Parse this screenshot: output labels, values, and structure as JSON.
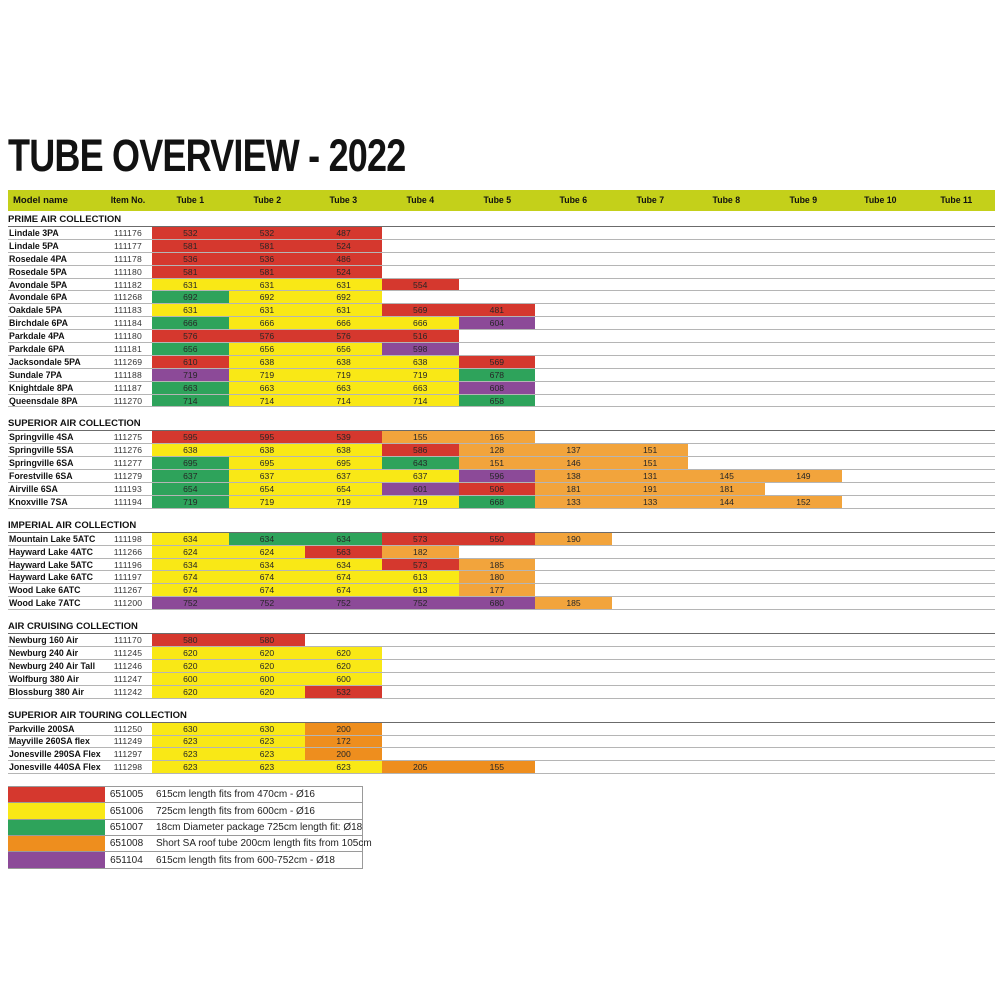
{
  "title": "TUBE OVERVIEW - 2022",
  "table": {
    "columns": [
      "Model name",
      "Item No.",
      "Tube 1",
      "Tube 2",
      "Tube 3",
      "Tube 4",
      "Tube 5",
      "Tube 6",
      "Tube 7",
      "Tube 8",
      "Tube 9",
      "Tube 10",
      "Tube 11"
    ],
    "colors": {
      "header": "#C4D01A",
      "r": "#D5382E",
      "y": "#F9E816",
      "g": "#2EA35B",
      "o": "#F2A43C",
      "d": "#EE8E1E",
      "p": "#8C4A98"
    },
    "sections": [
      {
        "name": "PRIME AIR COLLECTION",
        "rows": [
          {
            "model": "Lindale 3PA",
            "item": "111176",
            "cells": [
              {
                "v": "532",
                "c": "r"
              },
              {
                "v": "532",
                "c": "r"
              },
              {
                "v": "487",
                "c": "r"
              }
            ]
          },
          {
            "model": "Lindale 5PA",
            "item": "111177",
            "cells": [
              {
                "v": "581",
                "c": "r"
              },
              {
                "v": "581",
                "c": "r"
              },
              {
                "v": "524",
                "c": "r"
              }
            ]
          },
          {
            "model": "Rosedale 4PA",
            "item": "111178",
            "cells": [
              {
                "v": "536",
                "c": "r"
              },
              {
                "v": "536",
                "c": "r"
              },
              {
                "v": "486",
                "c": "r"
              }
            ]
          },
          {
            "model": "Rosedale 5PA",
            "item": "111180",
            "cells": [
              {
                "v": "581",
                "c": "r"
              },
              {
                "v": "581",
                "c": "r"
              },
              {
                "v": "524",
                "c": "r"
              }
            ]
          },
          {
            "model": "Avondale 5PA",
            "item": "111182",
            "cells": [
              {
                "v": "631",
                "c": "y"
              },
              {
                "v": "631",
                "c": "y"
              },
              {
                "v": "631",
                "c": "y"
              },
              {
                "v": "554",
                "c": "r"
              }
            ]
          },
          {
            "model": "Avondale 6PA",
            "item": "111268",
            "cells": [
              {
                "v": "692",
                "c": "g"
              },
              {
                "v": "692",
                "c": "y"
              },
              {
                "v": "692",
                "c": "y"
              }
            ]
          },
          {
            "model": "Oakdale 5PA",
            "item": "111183",
            "cells": [
              {
                "v": "631",
                "c": "y"
              },
              {
                "v": "631",
                "c": "y"
              },
              {
                "v": "631",
                "c": "y"
              },
              {
                "v": "569",
                "c": "r"
              },
              {
                "v": "481",
                "c": "r"
              }
            ]
          },
          {
            "model": "Birchdale 6PA",
            "item": "111184",
            "cells": [
              {
                "v": "666",
                "c": "g"
              },
              {
                "v": "666",
                "c": "y"
              },
              {
                "v": "666",
                "c": "y"
              },
              {
                "v": "666",
                "c": "y"
              },
              {
                "v": "604",
                "c": "p"
              }
            ]
          },
          {
            "model": "Parkdale 4PA",
            "item": "111180",
            "cells": [
              {
                "v": "576",
                "c": "r"
              },
              {
                "v": "576",
                "c": "r"
              },
              {
                "v": "576",
                "c": "r"
              },
              {
                "v": "516",
                "c": "r"
              }
            ]
          },
          {
            "model": "Parkdale 6PA",
            "item": "111181",
            "cells": [
              {
                "v": "656",
                "c": "g"
              },
              {
                "v": "656",
                "c": "y"
              },
              {
                "v": "656",
                "c": "y"
              },
              {
                "v": "598",
                "c": "p"
              }
            ]
          },
          {
            "model": "Jacksondale 5PA",
            "item": "111269",
            "cells": [
              {
                "v": "610",
                "c": "r"
              },
              {
                "v": "638",
                "c": "y"
              },
              {
                "v": "638",
                "c": "y"
              },
              {
                "v": "638",
                "c": "y"
              },
              {
                "v": "569",
                "c": "r"
              }
            ]
          },
          {
            "model": "Sundale 7PA",
            "item": "111188",
            "cells": [
              {
                "v": "719",
                "c": "p"
              },
              {
                "v": "719",
                "c": "y"
              },
              {
                "v": "719",
                "c": "y"
              },
              {
                "v": "719",
                "c": "y"
              },
              {
                "v": "678",
                "c": "g"
              }
            ]
          },
          {
            "model": "Knightdale 8PA",
            "item": "111187",
            "cells": [
              {
                "v": "663",
                "c": "g"
              },
              {
                "v": "663",
                "c": "y"
              },
              {
                "v": "663",
                "c": "y"
              },
              {
                "v": "663",
                "c": "y"
              },
              {
                "v": "608",
                "c": "p"
              }
            ]
          },
          {
            "model": "Queensdale 8PA",
            "item": "111270",
            "cells": [
              {
                "v": "714",
                "c": "g"
              },
              {
                "v": "714",
                "c": "y"
              },
              {
                "v": "714",
                "c": "y"
              },
              {
                "v": "714",
                "c": "y"
              },
              {
                "v": "658",
                "c": "g"
              }
            ]
          }
        ]
      },
      {
        "name": "SUPERIOR AIR COLLECTION",
        "rows": [
          {
            "model": "Springville 4SA",
            "item": "111275",
            "cells": [
              {
                "v": "595",
                "c": "r"
              },
              {
                "v": "595",
                "c": "r"
              },
              {
                "v": "539",
                "c": "r"
              },
              {
                "v": "155",
                "c": "o"
              },
              {
                "v": "165",
                "c": "o"
              }
            ]
          },
          {
            "model": "Springville 5SA",
            "item": "111276",
            "cells": [
              {
                "v": "638",
                "c": "y"
              },
              {
                "v": "638",
                "c": "y"
              },
              {
                "v": "638",
                "c": "y"
              },
              {
                "v": "586",
                "c": "r"
              },
              {
                "v": "128",
                "c": "o"
              },
              {
                "v": "137",
                "c": "o"
              },
              {
                "v": "151",
                "c": "o"
              }
            ]
          },
          {
            "model": "Springville 6SA",
            "item": "111277",
            "cells": [
              {
                "v": "695",
                "c": "g"
              },
              {
                "v": "695",
                "c": "y"
              },
              {
                "v": "695",
                "c": "y"
              },
              {
                "v": "643",
                "c": "g"
              },
              {
                "v": "151",
                "c": "o"
              },
              {
                "v": "146",
                "c": "o"
              },
              {
                "v": "151",
                "c": "o"
              }
            ]
          },
          {
            "model": "Forestville 6SA",
            "item": "111279",
            "cells": [
              {
                "v": "637",
                "c": "g"
              },
              {
                "v": "637",
                "c": "y"
              },
              {
                "v": "637",
                "c": "y"
              },
              {
                "v": "637",
                "c": "y"
              },
              {
                "v": "596",
                "c": "p"
              },
              {
                "v": "138",
                "c": "o"
              },
              {
                "v": "131",
                "c": "o"
              },
              {
                "v": "145",
                "c": "o"
              },
              {
                "v": "149",
                "c": "o"
              }
            ]
          },
          {
            "model": "Airville 6SA",
            "item": "111193",
            "cells": [
              {
                "v": "654",
                "c": "g"
              },
              {
                "v": "654",
                "c": "y"
              },
              {
                "v": "654",
                "c": "y"
              },
              {
                "v": "601",
                "c": "p"
              },
              {
                "v": "506",
                "c": "r"
              },
              {
                "v": "181",
                "c": "o"
              },
              {
                "v": "191",
                "c": "o"
              },
              {
                "v": "181",
                "c": "o"
              }
            ]
          },
          {
            "model": "Knoxville 7SA",
            "item": "111194",
            "cells": [
              {
                "v": "719",
                "c": "g"
              },
              {
                "v": "719",
                "c": "y"
              },
              {
                "v": "719",
                "c": "y"
              },
              {
                "v": "719",
                "c": "y"
              },
              {
                "v": "668",
                "c": "g"
              },
              {
                "v": "133",
                "c": "o"
              },
              {
                "v": "133",
                "c": "o"
              },
              {
                "v": "144",
                "c": "o"
              },
              {
                "v": "152",
                "c": "o"
              }
            ]
          }
        ]
      },
      {
        "name": "IMPERIAL AIR COLLECTION",
        "rows": [
          {
            "model": "Mountain Lake 5ATC",
            "item": "111198",
            "cells": [
              {
                "v": "634",
                "c": "y"
              },
              {
                "v": "634",
                "c": "g"
              },
              {
                "v": "634",
                "c": "g"
              },
              {
                "v": "573",
                "c": "r"
              },
              {
                "v": "550",
                "c": "r"
              },
              {
                "v": "190",
                "c": "o"
              }
            ]
          },
          {
            "model": "Hayward Lake 4ATC",
            "item": "111266",
            "cells": [
              {
                "v": "624",
                "c": "y"
              },
              {
                "v": "624",
                "c": "y"
              },
              {
                "v": "563",
                "c": "r"
              },
              {
                "v": "182",
                "c": "o"
              }
            ]
          },
          {
            "model": "Hayward Lake 5ATC",
            "item": "111196",
            "cells": [
              {
                "v": "634",
                "c": "y"
              },
              {
                "v": "634",
                "c": "y"
              },
              {
                "v": "634",
                "c": "y"
              },
              {
                "v": "573",
                "c": "r"
              },
              {
                "v": "185",
                "c": "o"
              }
            ]
          },
          {
            "model": "Hayward Lake 6ATC",
            "item": "111197",
            "cells": [
              {
                "v": "674",
                "c": "y"
              },
              {
                "v": "674",
                "c": "y"
              },
              {
                "v": "674",
                "c": "y"
              },
              {
                "v": "613",
                "c": "y"
              },
              {
                "v": "180",
                "c": "o"
              }
            ]
          },
          {
            "model": "Wood Lake 6ATC",
            "item": "111267",
            "cells": [
              {
                "v": "674",
                "c": "y"
              },
              {
                "v": "674",
                "c": "y"
              },
              {
                "v": "674",
                "c": "y"
              },
              {
                "v": "613",
                "c": "y"
              },
              {
                "v": "177",
                "c": "o"
              }
            ]
          },
          {
            "model": "Wood Lake 7ATC",
            "item": "111200",
            "cells": [
              {
                "v": "752",
                "c": "p"
              },
              {
                "v": "752",
                "c": "p"
              },
              {
                "v": "752",
                "c": "p"
              },
              {
                "v": "752",
                "c": "p"
              },
              {
                "v": "680",
                "c": "p"
              },
              {
                "v": "185",
                "c": "o"
              }
            ]
          }
        ]
      },
      {
        "name": "AIR CRUISING COLLECTION",
        "rows": [
          {
            "model": "Newburg 160 Air",
            "item": "111170",
            "cells": [
              {
                "v": "580",
                "c": "r"
              },
              {
                "v": "580",
                "c": "r"
              }
            ]
          },
          {
            "model": "Newburg 240 Air",
            "item": "111245",
            "cells": [
              {
                "v": "620",
                "c": "y"
              },
              {
                "v": "620",
                "c": "y"
              },
              {
                "v": "620",
                "c": "y"
              }
            ]
          },
          {
            "model": "Newburg 240 Air Tall",
            "item": "111246",
            "cells": [
              {
                "v": "620",
                "c": "y"
              },
              {
                "v": "620",
                "c": "y"
              },
              {
                "v": "620",
                "c": "y"
              }
            ]
          },
          {
            "model": "Wolfburg 380 Air",
            "item": "111247",
            "cells": [
              {
                "v": "600",
                "c": "y"
              },
              {
                "v": "600",
                "c": "y"
              },
              {
                "v": "600",
                "c": "y"
              }
            ]
          },
          {
            "model": "Blossburg 380 Air",
            "item": "111242",
            "cells": [
              {
                "v": "620",
                "c": "y"
              },
              {
                "v": "620",
                "c": "y"
              },
              {
                "v": "532",
                "c": "r"
              }
            ]
          }
        ]
      },
      {
        "name": "SUPERIOR AIR TOURING COLLECTION",
        "rows": [
          {
            "model": "Parkville 200SA",
            "item": "111250",
            "cells": [
              {
                "v": "630",
                "c": "y"
              },
              {
                "v": "630",
                "c": "y"
              },
              {
                "v": "200",
                "c": "d"
              }
            ]
          },
          {
            "model": "Mayville 260SA flex",
            "item": "111249",
            "cells": [
              {
                "v": "623",
                "c": "y"
              },
              {
                "v": "623",
                "c": "y"
              },
              {
                "v": "172",
                "c": "d"
              }
            ]
          },
          {
            "model": "Jonesville 290SA Flex",
            "item": "111297",
            "cells": [
              {
                "v": "623",
                "c": "y"
              },
              {
                "v": "623",
                "c": "y"
              },
              {
                "v": "200",
                "c": "d"
              }
            ]
          },
          {
            "model": "Jonesville 440SA Flex",
            "item": "111298",
            "cells": [
              {
                "v": "623",
                "c": "y"
              },
              {
                "v": "623",
                "c": "y"
              },
              {
                "v": "623",
                "c": "y"
              },
              {
                "v": "205",
                "c": "d"
              },
              {
                "v": "155",
                "c": "d"
              }
            ]
          }
        ]
      }
    ]
  },
  "legend": [
    {
      "color": "r",
      "item": "651005",
      "desc": "615cm length fits from 470cm - Ø16"
    },
    {
      "color": "y",
      "item": "651006",
      "desc": "725cm length fits from 600cm - Ø16"
    },
    {
      "color": "g",
      "item": "651007",
      "desc": "18cm Diameter package 725cm length fit: Ø18"
    },
    {
      "color": "d",
      "item": "651008",
      "desc": "Short SA roof tube 200cm length fits from 105cm"
    },
    {
      "color": "p",
      "item": "651104",
      "desc": "615cm length fits from 600-752cm - Ø18"
    }
  ]
}
